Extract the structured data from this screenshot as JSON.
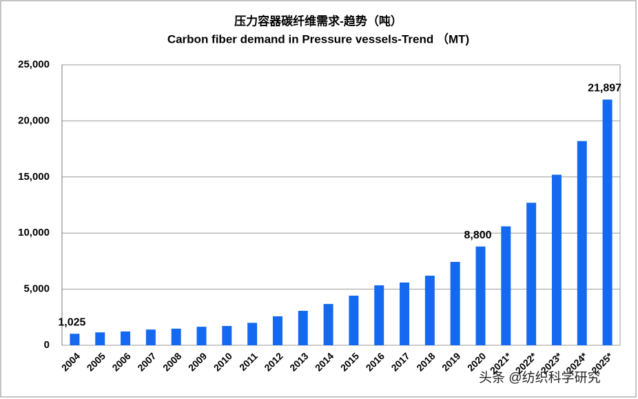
{
  "chart_data": {
    "type": "bar",
    "title": "压力容器碳纤维需求-趋势（吨）",
    "subtitle": "Carbon fiber demand in Pressure vessels-Trend （MT)",
    "categories": [
      "2004",
      "2005",
      "2006",
      "2007",
      "2008",
      "2009",
      "2010",
      "2011",
      "2012",
      "2013",
      "2014",
      "2015",
      "2016",
      "2017",
      "2018",
      "2019",
      "2020",
      "2021*",
      "2022*",
      "2023*",
      "2024*",
      "2025*"
    ],
    "values": [
      1025,
      1150,
      1230,
      1400,
      1480,
      1650,
      1720,
      2000,
      2580,
      3070,
      3680,
      4420,
      5340,
      5590,
      6200,
      7430,
      8800,
      10600,
      12700,
      15200,
      18200,
      21897
    ],
    "value_labels": [
      "1,025",
      null,
      null,
      null,
      null,
      null,
      null,
      null,
      null,
      null,
      null,
      null,
      null,
      null,
      null,
      null,
      "8,800",
      null,
      null,
      null,
      null,
      "21,897"
    ],
    "color": "#1469f0",
    "ylim": [
      0,
      25000
    ],
    "yticks": [
      0,
      {
        "value": 5000,
        "label": "5,000"
      },
      {
        "value": 10000,
        "label": "10,000"
      },
      {
        "value": 15000,
        "label": "15,000"
      },
      {
        "value": 20000,
        "label": "20,000"
      },
      {
        "value": 25000,
        "label": "25,000"
      }
    ],
    "grid": true,
    "watermark": "头条 @纺织科学研究"
  }
}
